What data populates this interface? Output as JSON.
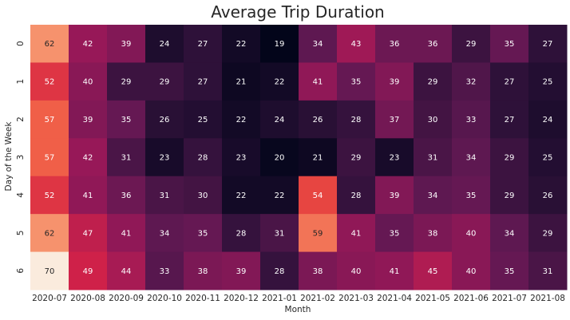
{
  "chart_data": {
    "type": "heatmap",
    "title": "Average Trip Duration",
    "xlabel": "Month",
    "ylabel": "Day of the Week",
    "x": [
      "2020-07",
      "2020-08",
      "2020-09",
      "2020-10",
      "2020-11",
      "2020-12",
      "2021-01",
      "2021-02",
      "2021-03",
      "2021-04",
      "2021-05",
      "2021-06",
      "2021-07",
      "2021-08"
    ],
    "y": [
      "0",
      "1",
      "2",
      "3",
      "4",
      "5",
      "6"
    ],
    "values": [
      [
        62,
        42,
        39,
        24,
        27,
        22,
        19,
        34,
        43,
        36,
        36,
        29,
        35,
        27
      ],
      [
        52,
        40,
        29,
        29,
        27,
        21,
        22,
        41,
        35,
        39,
        29,
        32,
        27,
        25
      ],
      [
        57,
        39,
        35,
        26,
        25,
        22,
        24,
        26,
        28,
        37,
        30,
        33,
        27,
        24
      ],
      [
        57,
        42,
        31,
        23,
        28,
        23,
        20,
        21,
        29,
        23,
        31,
        34,
        29,
        25
      ],
      [
        52,
        41,
        36,
        31,
        30,
        22,
        22,
        54,
        28,
        39,
        34,
        35,
        29,
        26
      ],
      [
        62,
        47,
        41,
        34,
        35,
        28,
        31,
        59,
        41,
        35,
        38,
        40,
        34,
        29
      ],
      [
        70,
        49,
        44,
        33,
        38,
        39,
        28,
        38,
        40,
        41,
        45,
        40,
        35,
        31
      ]
    ],
    "colormap": "rocket",
    "annotated": true,
    "colorbar": false
  }
}
